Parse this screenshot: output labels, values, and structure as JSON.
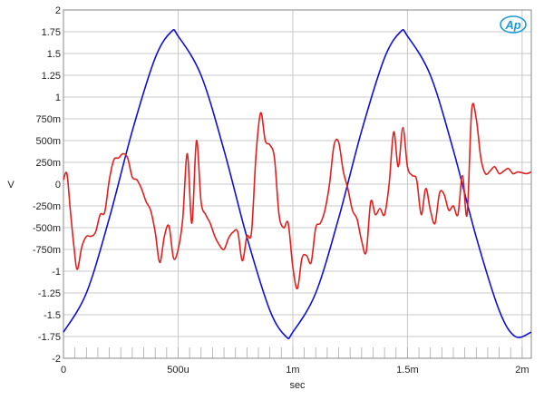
{
  "chart_data": {
    "type": "line",
    "xlabel": "sec",
    "ylabel": "V",
    "xlim": [
      0,
      0.00204
    ],
    "ylim": [
      -2,
      2
    ],
    "grid": true,
    "x_ticks": [
      {
        "value": 0,
        "label": "0"
      },
      {
        "value": 0.0005,
        "label": "500u"
      },
      {
        "value": 0.001,
        "label": "1m"
      },
      {
        "value": 0.0015,
        "label": "1.5m"
      },
      {
        "value": 0.002,
        "label": "2m"
      }
    ],
    "y_ticks": [
      {
        "value": 2,
        "label": "2"
      },
      {
        "value": 1.75,
        "label": "1.75"
      },
      {
        "value": 1.5,
        "label": "1.5"
      },
      {
        "value": 1.25,
        "label": "1.25"
      },
      {
        "value": 1,
        "label": "1"
      },
      {
        "value": 0.75,
        "label": "750m"
      },
      {
        "value": 0.5,
        "label": "500m"
      },
      {
        "value": 0.25,
        "label": "250m"
      },
      {
        "value": 0,
        "label": "0"
      },
      {
        "value": -0.25,
        "label": "-250m"
      },
      {
        "value": -0.5,
        "label": "-500m"
      },
      {
        "value": -0.75,
        "label": "-750m"
      },
      {
        "value": -1,
        "label": "-1"
      },
      {
        "value": -1.25,
        "label": "-1.25"
      },
      {
        "value": -1.5,
        "label": "-1.5"
      },
      {
        "value": -1.75,
        "label": "-1.75"
      },
      {
        "value": -2,
        "label": "-2"
      }
    ],
    "series": [
      {
        "color": "#1010d0",
        "x": [
          0,
          0.0001,
          0.0002,
          0.0003,
          0.0004,
          0.00047,
          0.0005,
          0.0006,
          0.0007,
          0.0008,
          0.0009,
          0.00097,
          0.001,
          0.0011,
          0.0012,
          0.0013,
          0.0014,
          0.00147,
          0.0015,
          0.0016,
          0.0017,
          0.0018,
          0.0019,
          0.00197,
          0.00204
        ],
        "y": [
          -1.7,
          -1.25,
          -0.39,
          0.61,
          1.45,
          1.75,
          1.7,
          1.25,
          0.39,
          -0.61,
          -1.45,
          -1.75,
          -1.7,
          -1.25,
          -0.39,
          0.61,
          1.45,
          1.75,
          1.7,
          1.25,
          0.39,
          -0.61,
          -1.45,
          -1.75,
          -1.7
        ]
      },
      {
        "color": "#e02020",
        "x": [
          0,
          1.5e-05,
          3e-05,
          4.5e-05,
          6e-05,
          8e-05,
          0.0001,
          0.00012,
          0.00014,
          0.00016,
          0.00018,
          0.0002,
          0.00022,
          0.00024,
          0.00026,
          0.00028,
          0.0003,
          0.00032,
          0.00034,
          0.00036,
          0.00038,
          0.0004,
          0.00042,
          0.00044,
          0.00046,
          0.00048,
          0.0005,
          0.00052,
          0.00054,
          0.00056,
          0.00058,
          0.0006,
          0.00062,
          0.00064,
          0.00066,
          0.00068,
          0.0007,
          0.00072,
          0.00074,
          0.00076,
          0.00078,
          0.0008,
          0.00082,
          0.00084,
          0.00086,
          0.00088,
          0.0009,
          0.00092,
          0.00094,
          0.00096,
          0.00098,
          0.001,
          0.00102,
          0.00104,
          0.00106,
          0.00108,
          0.0011,
          0.00112,
          0.00114,
          0.00116,
          0.00118,
          0.0012,
          0.00122,
          0.00124,
          0.00126,
          0.00128,
          0.0013,
          0.00132,
          0.00134,
          0.00136,
          0.00138,
          0.0014,
          0.00142,
          0.00144,
          0.00146,
          0.00148,
          0.0015,
          0.00152,
          0.00154,
          0.00156,
          0.00158,
          0.0016,
          0.00162,
          0.00164,
          0.00166,
          0.00168,
          0.0017,
          0.00172,
          0.00174,
          0.00176,
          0.00178,
          0.0018,
          0.00182,
          0.00184,
          0.00186,
          0.00188,
          0.0019,
          0.00192,
          0.00194,
          0.00196,
          0.00198,
          0.002,
          0.00202,
          0.00204
        ],
        "y": [
          0.05,
          0.12,
          -0.3,
          -0.7,
          -0.98,
          -0.72,
          -0.6,
          -0.6,
          -0.55,
          -0.35,
          -0.32,
          0.05,
          0.28,
          0.3,
          0.35,
          0.3,
          0.08,
          0.05,
          -0.05,
          -0.2,
          -0.3,
          -0.55,
          -0.9,
          -0.6,
          -0.48,
          -0.85,
          -0.75,
          -0.4,
          0.35,
          -0.45,
          0.5,
          -0.2,
          -0.35,
          -0.45,
          -0.6,
          -0.7,
          -0.75,
          -0.62,
          -0.55,
          -0.55,
          -0.88,
          -0.6,
          -0.55,
          0.35,
          0.82,
          0.5,
          0.45,
          0.3,
          -0.35,
          -0.5,
          -0.45,
          -0.95,
          -1.2,
          -0.85,
          -0.82,
          -0.9,
          -0.5,
          -0.45,
          -0.3,
          0.0,
          0.45,
          0.48,
          0.15,
          -0.05,
          -0.3,
          -0.4,
          -0.65,
          -0.78,
          -0.2,
          -0.35,
          -0.28,
          -0.35,
          0.0,
          0.6,
          0.2,
          0.65,
          0.2,
          0.1,
          0.05,
          -0.35,
          -0.05,
          -0.3,
          -0.45,
          -0.1,
          -0.12,
          -0.3,
          -0.25,
          -0.35,
          0.1,
          -0.35,
          0.85,
          0.75,
          0.3,
          0.12,
          0.15,
          0.2,
          0.12,
          0.15,
          0.18,
          0.12,
          0.14,
          0.13,
          0.12,
          0.14
        ]
      }
    ]
  },
  "logo": {
    "text": "Ap"
  }
}
